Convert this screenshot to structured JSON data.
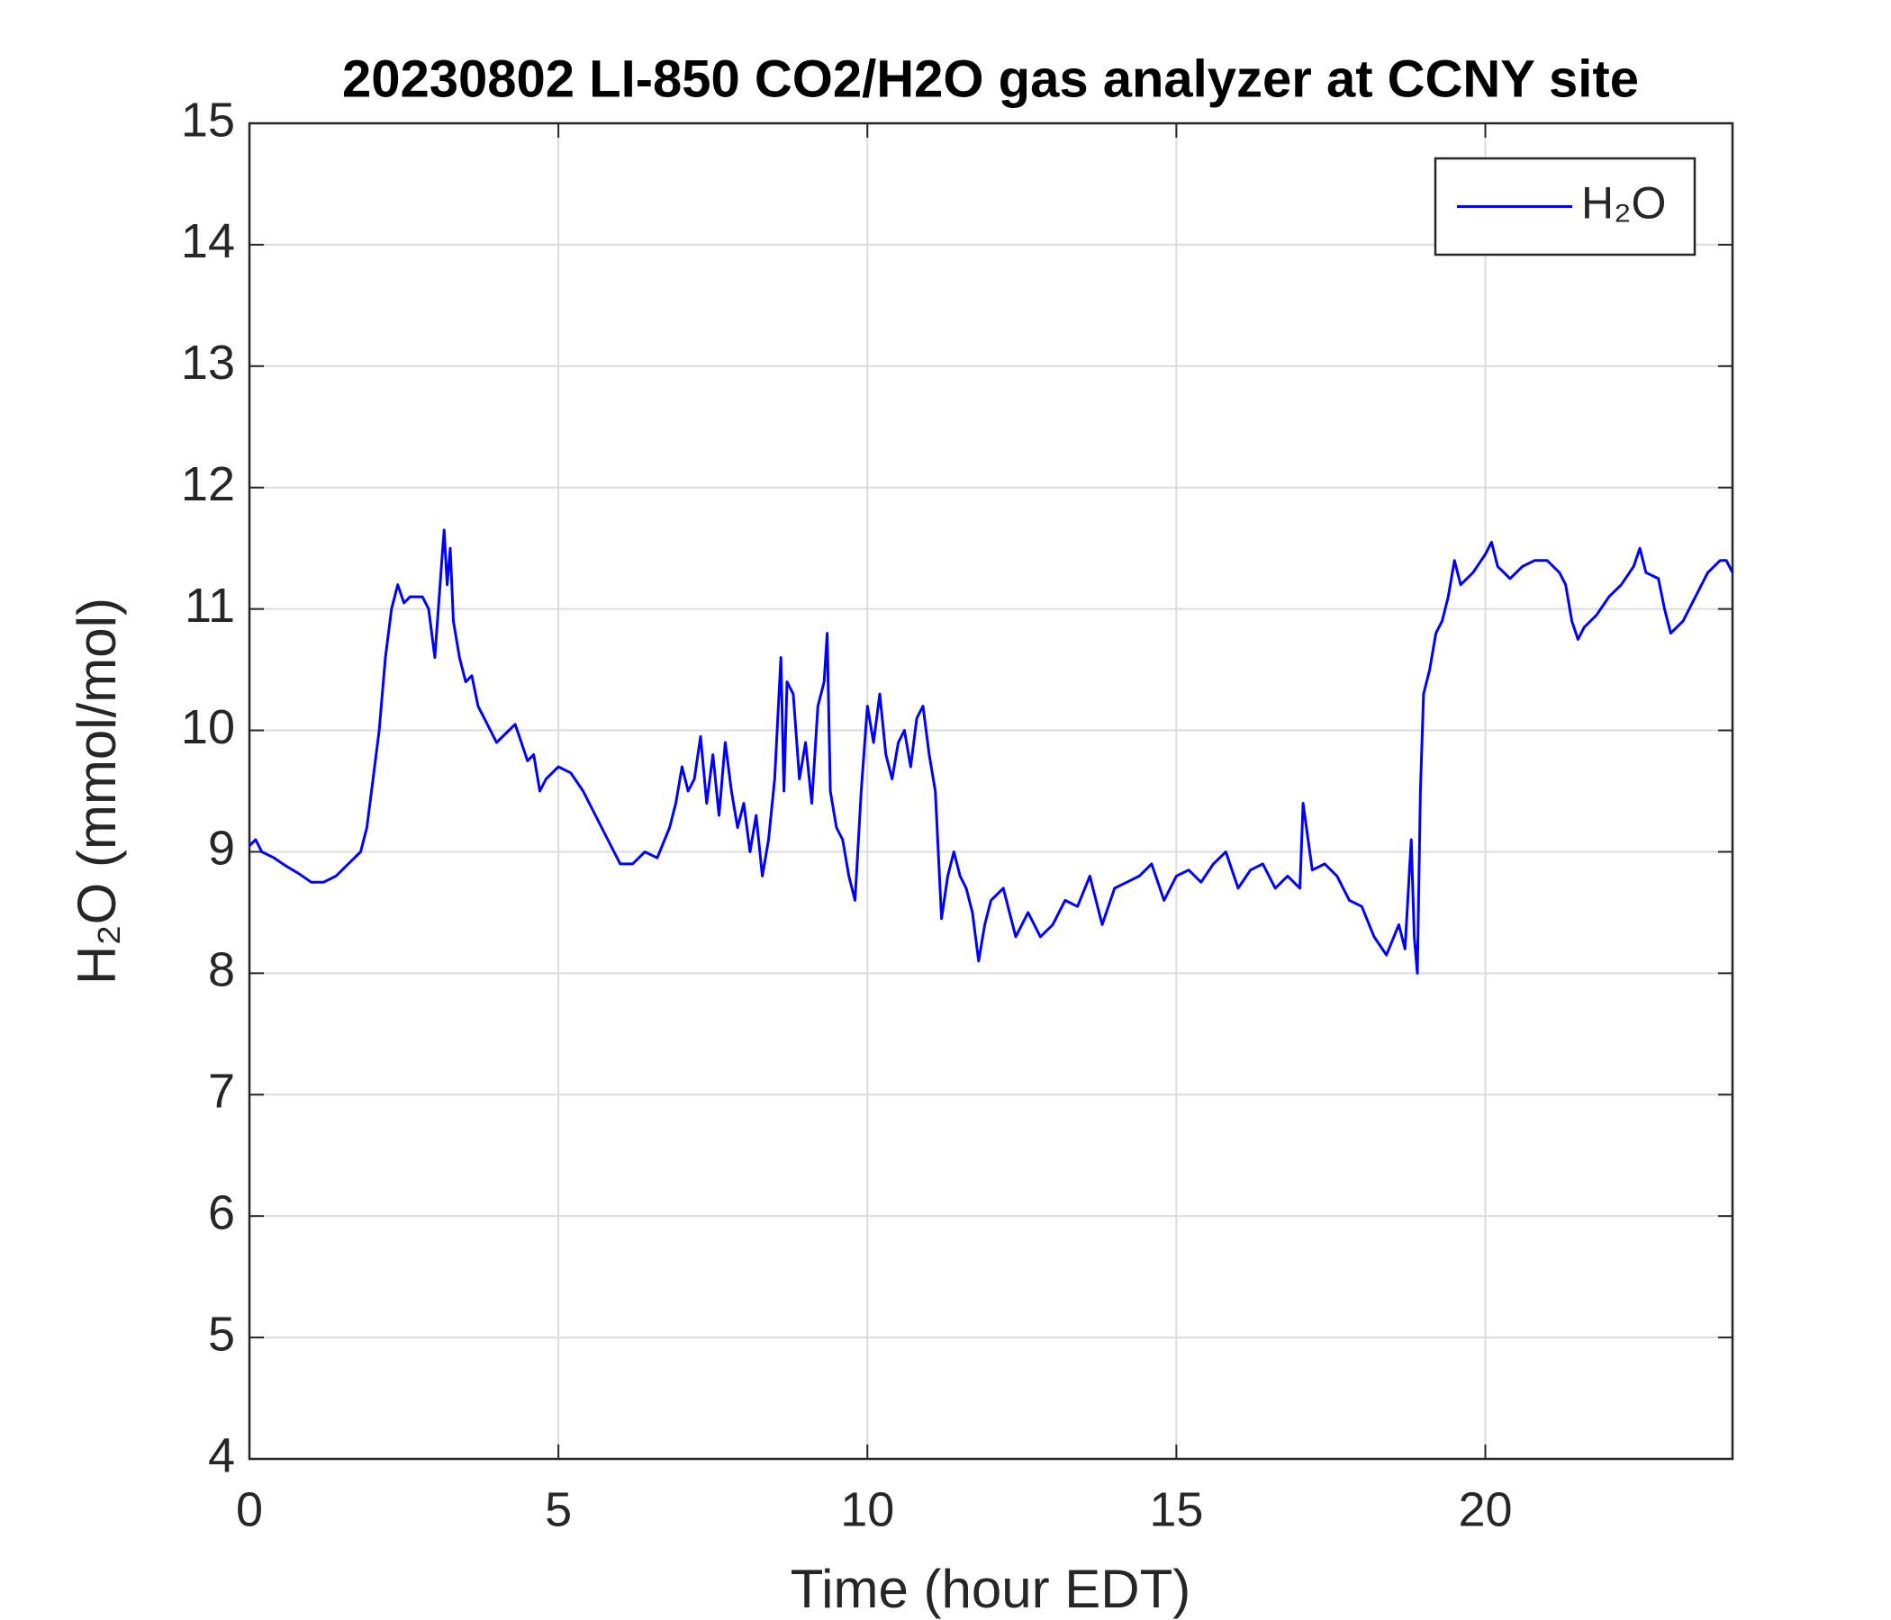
{
  "chart_data": {
    "type": "line",
    "title": "20230802 LI-850 CO2/H2O gas analyzer at CCNY site",
    "xlabel": "Time (hour EDT)",
    "ylabel": "H₂O (mmol/mol)",
    "x": [
      0,
      0.1,
      0.2,
      0.4,
      0.6,
      0.8,
      1.0,
      1.2,
      1.4,
      1.6,
      1.8,
      1.9,
      2.0,
      2.1,
      2.2,
      2.3,
      2.4,
      2.5,
      2.6,
      2.8,
      2.9,
      3.0,
      3.1,
      3.15,
      3.2,
      3.25,
      3.3,
      3.4,
      3.5,
      3.6,
      3.7,
      3.8,
      3.9,
      4.0,
      4.2,
      4.3,
      4.4,
      4.5,
      4.6,
      4.7,
      4.8,
      5.0,
      5.2,
      5.4,
      5.6,
      5.8,
      6.0,
      6.2,
      6.4,
      6.6,
      6.8,
      6.9,
      7.0,
      7.1,
      7.2,
      7.3,
      7.4,
      7.5,
      7.6,
      7.7,
      7.8,
      7.9,
      8.0,
      8.1,
      8.2,
      8.3,
      8.4,
      8.5,
      8.6,
      8.65,
      8.7,
      8.8,
      8.9,
      9.0,
      9.1,
      9.2,
      9.3,
      9.35,
      9.4,
      9.5,
      9.6,
      9.7,
      9.8,
      9.9,
      10.0,
      10.1,
      10.2,
      10.3,
      10.4,
      10.5,
      10.6,
      10.7,
      10.8,
      10.9,
      11.0,
      11.1,
      11.2,
      11.3,
      11.4,
      11.5,
      11.6,
      11.7,
      11.8,
      11.9,
      12.0,
      12.2,
      12.4,
      12.6,
      12.8,
      13.0,
      13.2,
      13.4,
      13.6,
      13.8,
      14.0,
      14.2,
      14.4,
      14.6,
      14.8,
      15.0,
      15.2,
      15.4,
      15.6,
      15.8,
      16.0,
      16.2,
      16.4,
      16.6,
      16.8,
      17.0,
      17.05,
      17.2,
      17.4,
      17.6,
      17.8,
      18.0,
      18.2,
      18.4,
      18.6,
      18.7,
      18.8,
      18.85,
      18.9,
      18.95,
      19.0,
      19.1,
      19.2,
      19.3,
      19.4,
      19.5,
      19.6,
      19.8,
      20.0,
      20.1,
      20.2,
      20.4,
      20.6,
      20.8,
      21.0,
      21.2,
      21.3,
      21.4,
      21.5,
      21.6,
      21.8,
      22.0,
      22.2,
      22.4,
      22.5,
      22.6,
      22.8,
      22.9,
      23.0,
      23.2,
      23.4,
      23.6,
      23.8,
      23.9,
      24.0
    ],
    "series": [
      {
        "name": "H₂O",
        "color": "#0000ff",
        "values": [
          9.05,
          9.1,
          9.0,
          8.95,
          8.88,
          8.82,
          8.75,
          8.75,
          8.8,
          8.9,
          9.0,
          9.2,
          9.6,
          10.0,
          10.6,
          11.0,
          11.2,
          11.05,
          11.1,
          11.1,
          11.0,
          10.6,
          11.3,
          11.65,
          11.2,
          11.5,
          10.9,
          10.6,
          10.4,
          10.45,
          10.2,
          10.1,
          10.0,
          9.9,
          10.0,
          10.05,
          9.9,
          9.75,
          9.8,
          9.5,
          9.6,
          9.7,
          9.65,
          9.5,
          9.3,
          9.1,
          8.9,
          8.9,
          9.0,
          8.95,
          9.2,
          9.4,
          9.7,
          9.5,
          9.6,
          9.95,
          9.4,
          9.8,
          9.3,
          9.9,
          9.5,
          9.2,
          9.4,
          9.0,
          9.3,
          8.8,
          9.1,
          9.6,
          10.6,
          9.5,
          10.4,
          10.3,
          9.6,
          9.9,
          9.4,
          10.2,
          10.4,
          10.8,
          9.5,
          9.2,
          9.1,
          8.8,
          8.6,
          9.5,
          10.2,
          9.9,
          10.3,
          9.8,
          9.6,
          9.9,
          10.0,
          9.7,
          10.1,
          10.2,
          9.8,
          9.5,
          8.45,
          8.8,
          9.0,
          8.8,
          8.7,
          8.5,
          8.1,
          8.4,
          8.6,
          8.7,
          8.3,
          8.5,
          8.3,
          8.4,
          8.6,
          8.55,
          8.8,
          8.4,
          8.7,
          8.75,
          8.8,
          8.9,
          8.6,
          8.8,
          8.85,
          8.75,
          8.9,
          9.0,
          8.7,
          8.85,
          8.9,
          8.7,
          8.8,
          8.7,
          9.4,
          8.85,
          8.9,
          8.8,
          8.6,
          8.55,
          8.3,
          8.15,
          8.4,
          8.2,
          9.1,
          8.3,
          8.0,
          9.5,
          10.3,
          10.5,
          10.8,
          10.9,
          11.1,
          11.4,
          11.2,
          11.3,
          11.45,
          11.55,
          11.35,
          11.25,
          11.35,
          11.4,
          11.4,
          11.3,
          11.2,
          10.9,
          10.75,
          10.85,
          10.95,
          11.1,
          11.2,
          11.35,
          11.5,
          11.3,
          11.25,
          11.0,
          10.8,
          10.9,
          11.1,
          11.3,
          11.4,
          11.4,
          11.3
        ]
      }
    ],
    "xlim": [
      0,
      24
    ],
    "xticks": [
      0,
      5,
      10,
      15,
      20
    ],
    "ylim": [
      4,
      15
    ],
    "yticks": [
      4,
      5,
      6,
      7,
      8,
      9,
      10,
      11,
      12,
      13,
      14,
      15
    ],
    "grid": true,
    "legend": "northeast"
  }
}
